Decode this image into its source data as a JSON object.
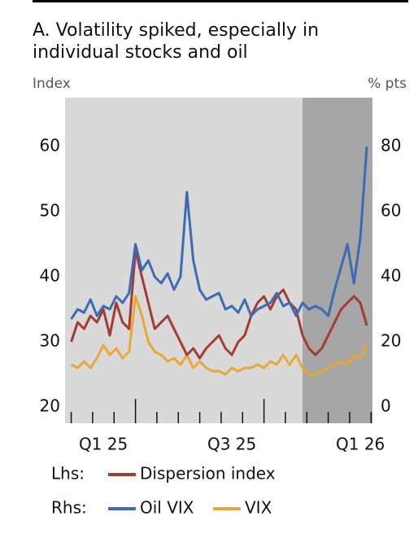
{
  "chart_data": {
    "type": "line",
    "title": [
      "A. Volatility spiked, especially in",
      "individual stocks and oil"
    ],
    "ylabel": "Index",
    "y2label": "% pts",
    "lhs_label": "Lhs:",
    "rhs_label": "Rhs:",
    "x": [
      2025,
      2025.025,
      2025.05,
      2025.075,
      2025.1,
      2025.125,
      2025.15,
      2025.175,
      2025.2,
      2025.225,
      2025.25,
      2025.275,
      2025.3,
      2025.325,
      2025.35,
      2025.375,
      2025.4,
      2025.425,
      2025.45,
      2025.475,
      2025.5,
      2025.525,
      2025.55,
      2025.575,
      2025.6,
      2025.625,
      2025.65,
      2025.675,
      2025.7,
      2025.725,
      2025.75,
      2025.775,
      2025.8,
      2025.825,
      2025.85,
      2025.875,
      2025.9,
      2025.925,
      2025.95,
      2025.975,
      2026,
      2026.025,
      2026.05,
      2026.075,
      2026.1,
      2026.125,
      2026.15
    ],
    "series": [
      {
        "name": "Dispersion index",
        "color": "#a33b32",
        "axis": "y",
        "values": [
          30,
          33,
          32,
          34,
          33,
          35,
          31,
          36,
          33,
          32,
          44,
          40,
          36,
          32,
          33,
          34,
          32,
          30,
          28,
          29,
          27.5,
          29,
          30,
          31,
          29,
          28,
          30,
          31,
          34,
          36,
          37,
          35,
          37,
          38,
          36,
          35,
          31,
          29,
          28,
          29,
          31,
          33,
          35,
          36,
          37,
          36,
          32.5
        ]
      },
      {
        "name": "Oil VIX",
        "color": "#3d6bb3",
        "axis": "y2",
        "values": [
          27,
          30,
          29,
          33,
          28,
          31,
          30,
          34,
          32,
          35,
          50,
          42,
          45,
          40,
          38,
          41,
          36,
          40,
          66,
          45,
          36,
          33,
          34,
          35,
          30,
          31,
          29,
          33,
          28,
          30,
          31,
          32,
          35,
          31,
          32,
          28,
          32,
          30,
          31,
          30,
          28,
          36,
          43,
          50,
          38,
          52,
          80
        ]
      },
      {
        "name": "VIX",
        "color": "#e8a838",
        "axis": "y2",
        "values": [
          13,
          12,
          14,
          12,
          15,
          19,
          16,
          18,
          15,
          17,
          34,
          28,
          20,
          17,
          16,
          14,
          15,
          13,
          16,
          12,
          14,
          12,
          11,
          11,
          10,
          12,
          11,
          12,
          12,
          13,
          12,
          14,
          13,
          16,
          13,
          16,
          12,
          10,
          10,
          11,
          12,
          13,
          14,
          13,
          16,
          15,
          19
        ]
      }
    ],
    "xlim": [
      2024.976,
      2026.172
    ],
    "xticks": [
      {
        "value": 2025.125,
        "label": "Q1 25"
      },
      {
        "value": 2025.625,
        "label": "Q3 25"
      },
      {
        "value": 2026.125,
        "label": "Q1 26"
      }
    ],
    "xminor": [
      2025,
      2025.0833,
      2025.1667,
      2025.3333,
      2025.4167,
      2025.5,
      2025.5833,
      2025.6667,
      2025.8333,
      2025.9167,
      2026,
      2026.0833,
      2026.1667
    ],
    "xmajor": [
      2025.25,
      2025.75
    ],
    "ylim": [
      17.5,
      67.5
    ],
    "yticks": [
      20,
      30,
      40,
      50,
      60
    ],
    "y2lim": [
      -5,
      95
    ],
    "y2ticks": [
      0,
      20,
      40,
      60,
      80
    ],
    "shade": [
      2025.9,
      2026.172
    ],
    "background": "#d9d9d9",
    "shade_color": "#a6a6a6"
  }
}
